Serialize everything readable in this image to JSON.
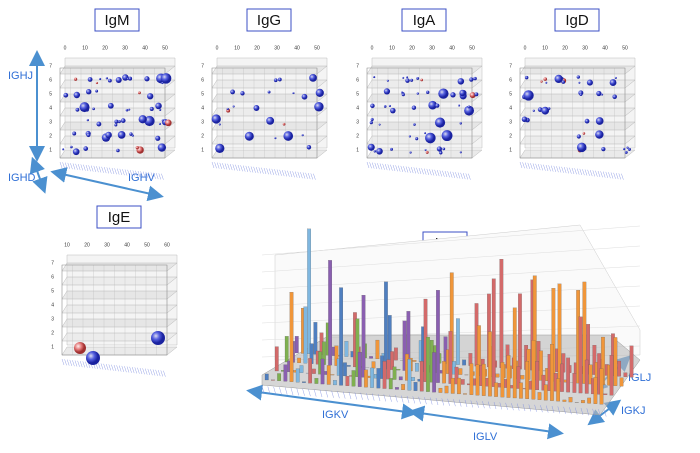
{
  "panels": [
    {
      "title": "IgM",
      "x_ticks": [
        0,
        10,
        20,
        30,
        40,
        50
      ],
      "z_ticks": [
        1,
        2,
        3,
        4,
        5,
        6,
        7
      ]
    },
    {
      "title": "IgG",
      "x_ticks": [
        0,
        10,
        20,
        30,
        40,
        50
      ],
      "z_ticks": [
        1,
        2,
        3,
        4,
        5,
        6,
        7
      ]
    },
    {
      "title": "IgA",
      "x_ticks": [
        0,
        10,
        20,
        30,
        40,
        50
      ],
      "z_ticks": [
        1,
        2,
        3,
        4,
        5,
        6,
        7
      ]
    },
    {
      "title": "IgD",
      "x_ticks": [
        0,
        10,
        20,
        30,
        40,
        50
      ],
      "z_ticks": [
        1,
        2,
        3,
        4,
        5,
        6,
        7
      ]
    },
    {
      "title": "IgE",
      "x_ticks": [
        10,
        20,
        30,
        40,
        50,
        60
      ],
      "z_ticks": [
        1,
        2,
        3,
        4,
        5,
        6,
        7
      ]
    }
  ],
  "light_panel": {
    "title": "IgL"
  },
  "axis_labels": {
    "ighj": "IGHJ",
    "ighd": "IGHD",
    "ighv": "IGHV",
    "igkv": "IGKV",
    "iglv": "IGLV",
    "iglj": "IGLJ",
    "igkj": "IGKJ"
  }
}
